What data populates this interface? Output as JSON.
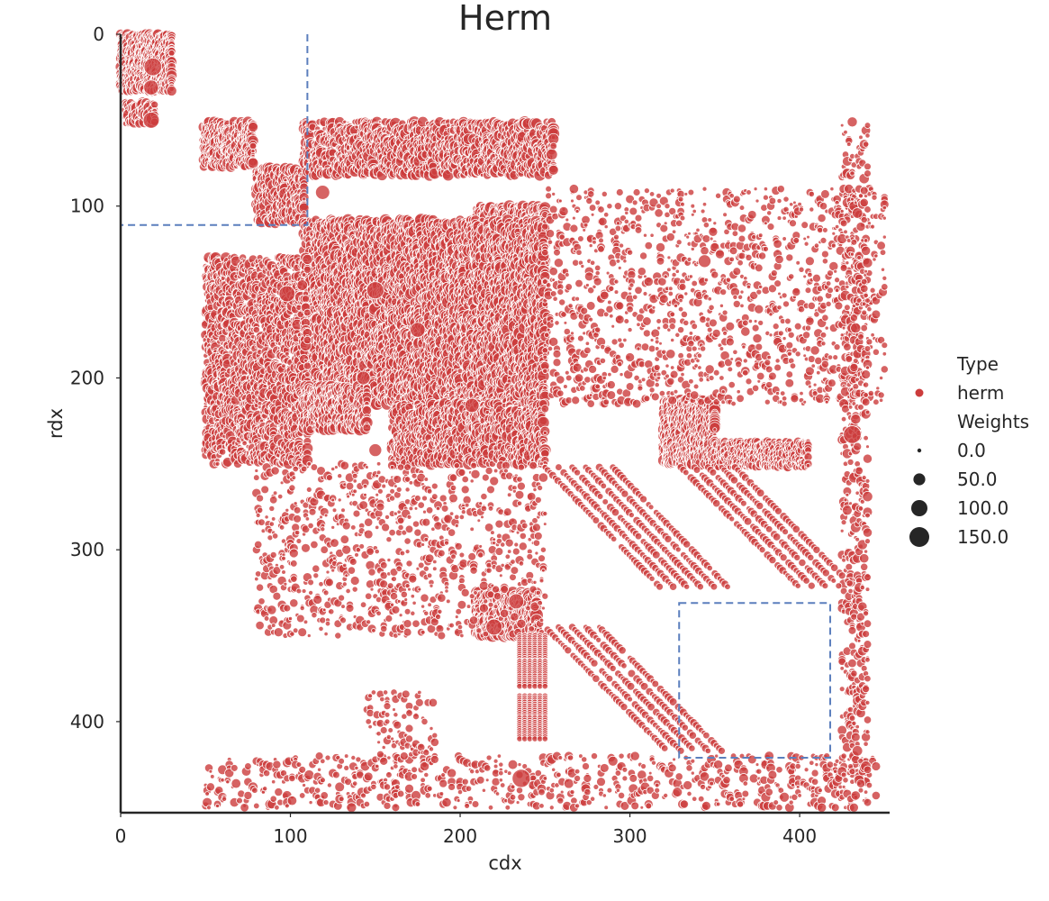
{
  "chart_data": {
    "type": "scatter",
    "title": "Herm",
    "xlabel": "cdx",
    "ylabel": "rdx",
    "xlim": [
      0,
      453
    ],
    "ylim": [
      453,
      0
    ],
    "y_inverted": true,
    "xticks": [
      0,
      100,
      200,
      300,
      400
    ],
    "yticks": [
      0,
      100,
      200,
      300,
      400
    ],
    "grid": false,
    "legend_placement": "right",
    "legend": {
      "hue_title": "Type",
      "hue_entries": [
        {
          "label": "herm",
          "color": "#cc3c3c"
        }
      ],
      "size_title": "Weights",
      "size_entries": [
        "0.0",
        "50.0",
        "100.0",
        "150.0"
      ]
    },
    "colors": {
      "herm": "#cc3c3c",
      "box": "#5b7fbd"
    },
    "boxes": [
      {
        "x_min": 0,
        "x_max": 110,
        "y_min": 0,
        "y_max": 111
      },
      {
        "x_min": 329,
        "x_max": 418,
        "y_min": 331,
        "y_max": 421
      }
    ],
    "clusters": [
      {
        "x": [
          0,
          30
        ],
        "y": [
          0,
          33
        ],
        "density": 0.85,
        "w": [
          0,
          40
        ]
      },
      {
        "x": [
          3,
          20
        ],
        "y": [
          40,
          52
        ],
        "density": 0.5,
        "w": [
          0,
          70
        ]
      },
      {
        "x": [
          49,
          78
        ],
        "y": [
          51,
          77
        ],
        "density": 0.6,
        "w": [
          0,
          45
        ]
      },
      {
        "x": [
          80,
          108
        ],
        "y": [
          78,
          110
        ],
        "density": 0.35,
        "w": [
          0,
          60
        ]
      },
      {
        "x": [
          108,
          255
        ],
        "y": [
          51,
          82
        ],
        "density": 0.3,
        "w": [
          0,
          55
        ]
      },
      {
        "x": [
          210,
          250
        ],
        "y": [
          100,
          140
        ],
        "density": 0.55,
        "w": [
          0,
          55
        ]
      },
      {
        "x": [
          108,
          250
        ],
        "y": [
          108,
          215
        ],
        "density": 0.35,
        "w": [
          0,
          65
        ]
      },
      {
        "x": [
          50,
          110
        ],
        "y": [
          130,
          250
        ],
        "density": 0.25,
        "w": [
          0,
          45
        ]
      },
      {
        "x": [
          108,
          145
        ],
        "y": [
          205,
          230
        ],
        "density": 0.6,
        "w": [
          0,
          60
        ]
      },
      {
        "x": [
          160,
          250
        ],
        "y": [
          215,
          250
        ],
        "density": 0.3,
        "w": [
          0,
          60
        ]
      },
      {
        "x": [
          210,
          245
        ],
        "y": [
          325,
          350
        ],
        "density": 0.85,
        "w": [
          0,
          75
        ]
      },
      {
        "x": [
          320,
          350
        ],
        "y": [
          213,
          250
        ],
        "density": 0.8,
        "w": [
          0,
          55
        ]
      },
      {
        "x": [
          350,
          405
        ],
        "y": [
          237,
          252
        ],
        "density": 0.55,
        "w": [
          0,
          25
        ]
      },
      {
        "x": [
          250,
          450
        ],
        "y": [
          90,
          215
        ],
        "density": 0.05,
        "w": [
          0,
          25
        ]
      },
      {
        "x": [
          80,
          250
        ],
        "y": [
          250,
          350
        ],
        "density": 0.05,
        "w": [
          0,
          25
        ]
      },
      {
        "x": [
          48,
          445
        ],
        "y": [
          420,
          450
        ],
        "density": 0.06,
        "w": [
          0,
          30
        ]
      },
      {
        "x": [
          425,
          440
        ],
        "y": [
          50,
          450
        ],
        "density": 0.08,
        "w": [
          0,
          35
        ]
      },
      {
        "x": [
          145,
          185
        ],
        "y": [
          383,
          420
        ],
        "density": 0.05,
        "w": [
          0,
          20
        ]
      }
    ],
    "diagonal_bands": [
      {
        "x0": 250,
        "y0": 252,
        "dx": 68,
        "dy": 70,
        "count": 6,
        "sep": 8,
        "step": 1.5
      },
      {
        "x0": 330,
        "y0": 252,
        "dx": 70,
        "dy": 70,
        "count": 5,
        "sep": 8,
        "step": 1.5
      },
      {
        "x0": 250,
        "y0": 345,
        "dx": 72,
        "dy": 72,
        "count": 5,
        "sep": 8,
        "step": 1.5
      }
    ],
    "vertical_stacks": [
      {
        "x": [
          235,
          250
        ],
        "y": [
          350,
          365
        ]
      },
      {
        "x": [
          235,
          250
        ],
        "y": [
          365,
          380
        ]
      },
      {
        "x": [
          235,
          250
        ],
        "y": [
          385,
          397
        ]
      },
      {
        "x": [
          235,
          250
        ],
        "y": [
          398,
          410
        ]
      }
    ],
    "highlights": [
      {
        "x": 19,
        "y": 19,
        "w": 140
      },
      {
        "x": 18,
        "y": 50,
        "w": 110
      },
      {
        "x": 18,
        "y": 31,
        "w": 90
      },
      {
        "x": 98,
        "y": 151,
        "w": 110
      },
      {
        "x": 150,
        "y": 149,
        "w": 130
      },
      {
        "x": 236,
        "y": 433,
        "w": 150
      },
      {
        "x": 431,
        "y": 233,
        "w": 140
      },
      {
        "x": 150,
        "y": 242,
        "w": 60
      },
      {
        "x": 119,
        "y": 92,
        "w": 80
      },
      {
        "x": 344,
        "y": 132,
        "w": 60
      },
      {
        "x": 143,
        "y": 200,
        "w": 70
      },
      {
        "x": 207,
        "y": 216,
        "w": 80
      },
      {
        "x": 175,
        "y": 172,
        "w": 90
      },
      {
        "x": 220,
        "y": 345,
        "w": 110
      },
      {
        "x": 233,
        "y": 330,
        "w": 95
      }
    ]
  }
}
